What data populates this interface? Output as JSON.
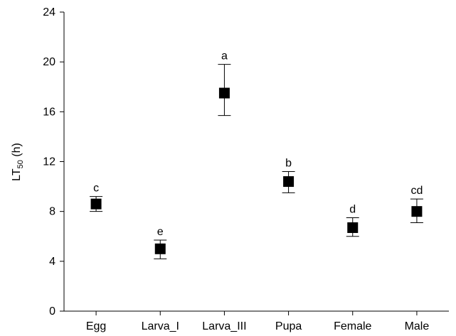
{
  "chart_data": {
    "type": "scatter",
    "title": "",
    "xlabel": "",
    "ylabel": "LT",
    "ylabel_sub": "50",
    "ylabel_unit": " (h)",
    "ylim": [
      0,
      24
    ],
    "yticks": [
      0,
      4,
      8,
      12,
      16,
      20,
      24
    ],
    "categories": [
      "Egg",
      "Larva_I",
      "Larva_III",
      "Pupa",
      "Female",
      "Male"
    ],
    "values": [
      8.6,
      5.0,
      17.5,
      10.4,
      6.7,
      8.0
    ],
    "error_low": [
      8.0,
      4.2,
      15.7,
      9.5,
      6.0,
      7.1
    ],
    "error_high": [
      9.2,
      5.7,
      19.8,
      11.2,
      7.5,
      9.0
    ],
    "significance_letters": [
      "c",
      "e",
      "a",
      "b",
      "d",
      "cd"
    ],
    "grid": false,
    "marker": "square",
    "marker_color": "#000000"
  }
}
